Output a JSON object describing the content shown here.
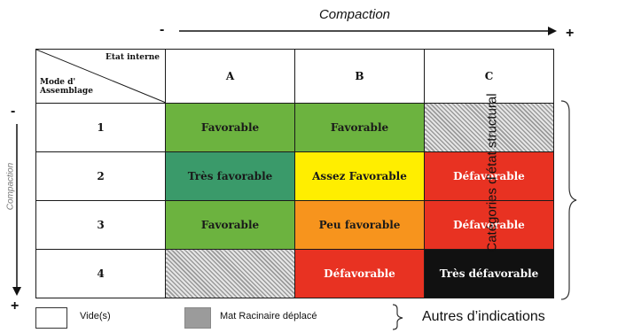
{
  "axes": {
    "top_label": "Compaction",
    "top_minus": "-",
    "top_plus": "+",
    "left_label": "Compaction",
    "left_minus": "-",
    "left_plus": "+"
  },
  "matrix": {
    "corner_top": "Etat interne",
    "corner_bottom": "Mode d' Assemblage",
    "columns": [
      "A",
      "B",
      "C"
    ],
    "rows": [
      {
        "label": "1",
        "cells": [
          {
            "text": "Favorable",
            "color": "#6cb33f",
            "text_color": "#1a1a1a",
            "hatched": false
          },
          {
            "text": "Favorable",
            "color": "#6cb33f",
            "text_color": "#1a1a1a",
            "hatched": false
          },
          {
            "text": "",
            "color": "",
            "text_color": "",
            "hatched": true
          }
        ]
      },
      {
        "label": "2",
        "cells": [
          {
            "text": "Très favorable",
            "color": "#3a9a6a",
            "text_color": "#1a1a1a",
            "hatched": false
          },
          {
            "text": "Assez Favorable",
            "color": "#ffee00",
            "text_color": "#1a1a1a",
            "hatched": false
          },
          {
            "text": "Défavorable",
            "color": "#e83222",
            "text_color": "#ffffff",
            "hatched": false
          }
        ]
      },
      {
        "label": "3",
        "cells": [
          {
            "text": "Favorable",
            "color": "#6cb33f",
            "text_color": "#1a1a1a",
            "hatched": false
          },
          {
            "text": "Peu favorable",
            "color": "#f7941d",
            "text_color": "#1a1a1a",
            "hatched": false
          },
          {
            "text": "Défavorable",
            "color": "#e83222",
            "text_color": "#ffffff",
            "hatched": false
          }
        ]
      },
      {
        "label": "4",
        "cells": [
          {
            "text": "",
            "color": "",
            "text_color": "",
            "hatched": true
          },
          {
            "text": "Défavorable",
            "color": "#e83222",
            "text_color": "#ffffff",
            "hatched": false
          },
          {
            "text": "Très défavorable",
            "color": "#111111",
            "text_color": "#ffffff",
            "hatched": false
          }
        ]
      }
    ]
  },
  "right_label": "Catégories d’état structural",
  "legend": {
    "empty_label": "Vide(s)",
    "hatched_label": "Mat Racinaire déplacé",
    "group_label": "Autres d’indications"
  }
}
